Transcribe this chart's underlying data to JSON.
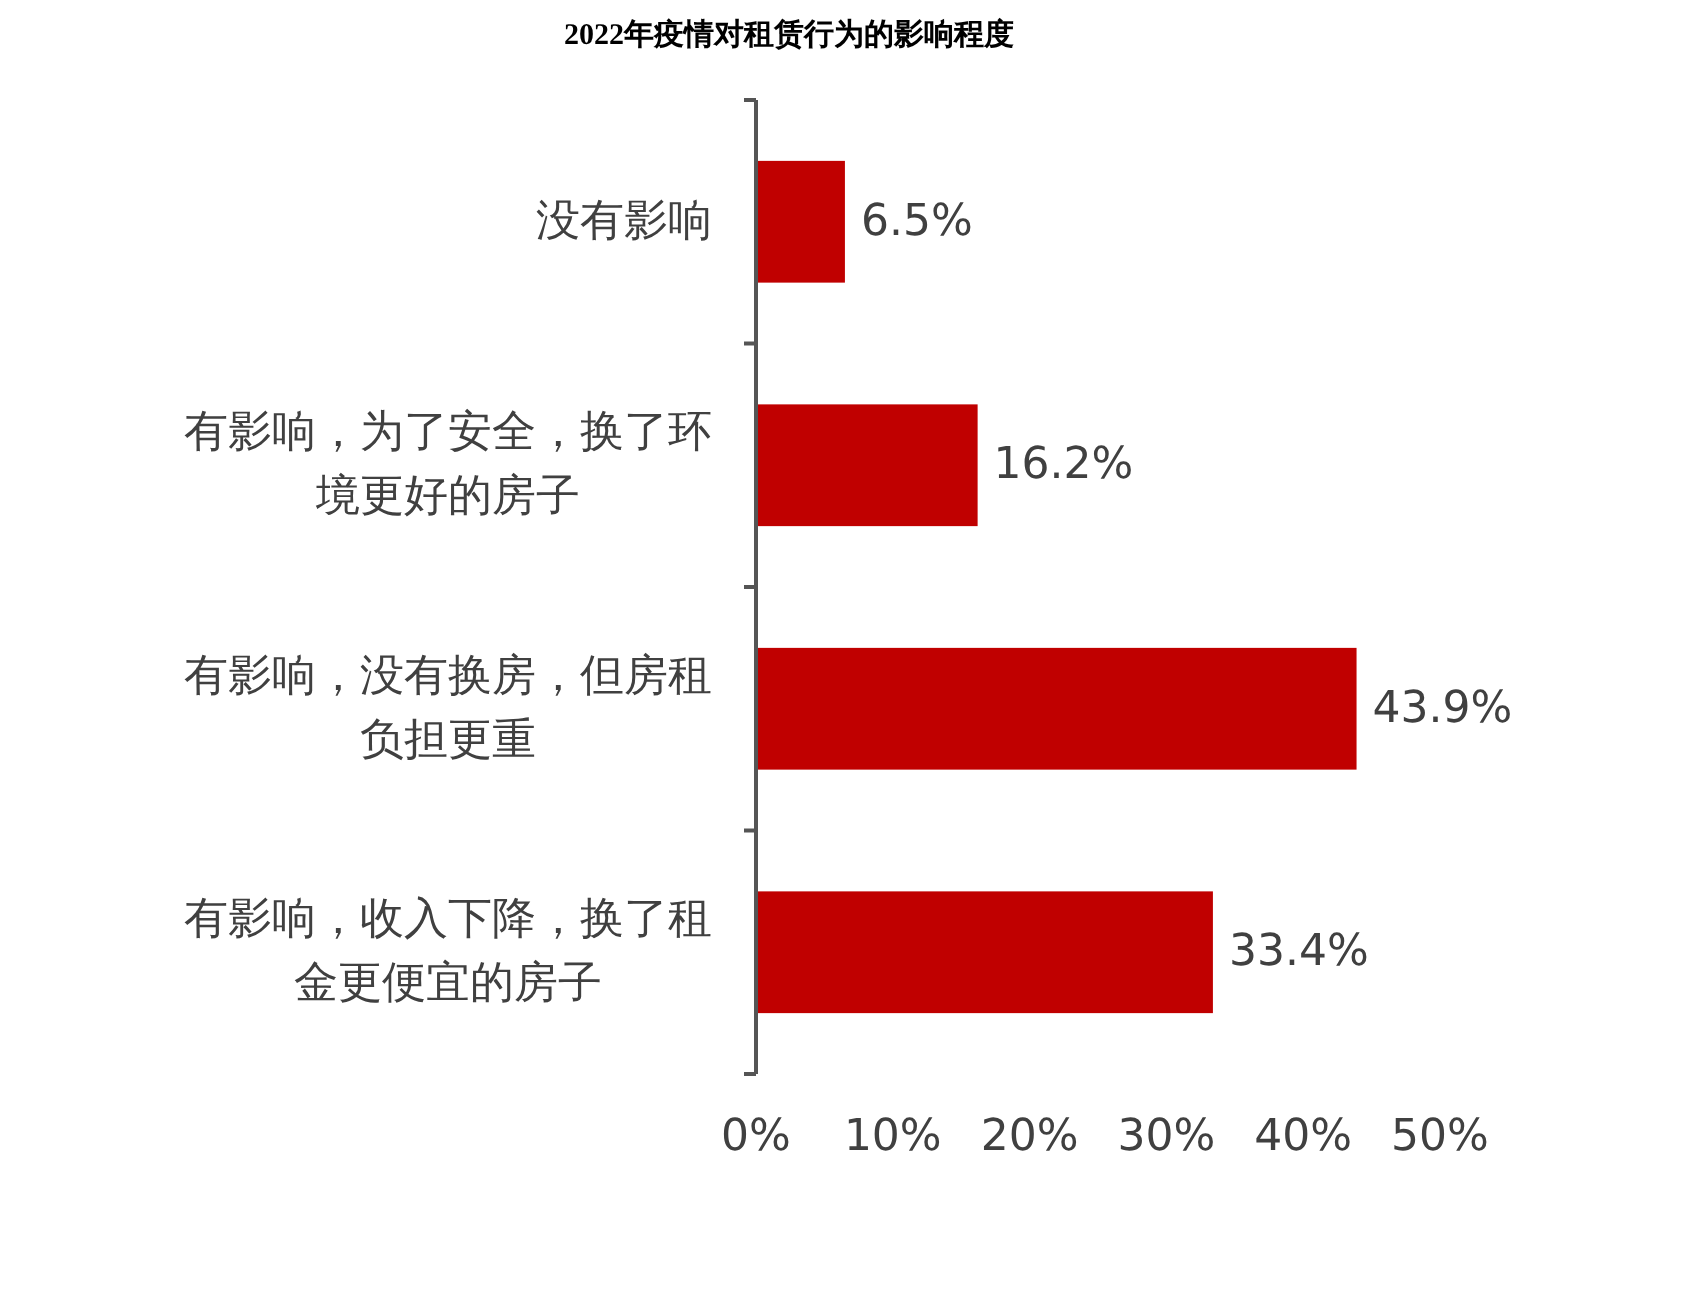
{
  "chart_data": {
    "type": "bar",
    "orientation": "horizontal",
    "title": "2022年疫情对租赁行为的影响程度",
    "categories": [
      "没有影响",
      "有影响，为了安全，换了环境更好的房子",
      "有影响，没有换房，但房租负担更重",
      "有影响，收入下降，换了租金更便宜的房子"
    ],
    "values": [
      6.5,
      16.2,
      43.9,
      33.4
    ],
    "color": "#c00000",
    "value_labels": [
      "6.5%",
      "16.2%",
      "43.9%",
      "33.4%"
    ],
    "xlim": [
      0,
      50
    ],
    "xticks": [
      {
        "value": 0,
        "label": "0%"
      },
      {
        "value": 10,
        "label": "10%"
      },
      {
        "value": 20,
        "label": "20%"
      },
      {
        "value": 30,
        "label": "30%"
      },
      {
        "value": 40,
        "label": "40%"
      },
      {
        "value": 50,
        "label": "50%"
      }
    ],
    "grid": false
  }
}
